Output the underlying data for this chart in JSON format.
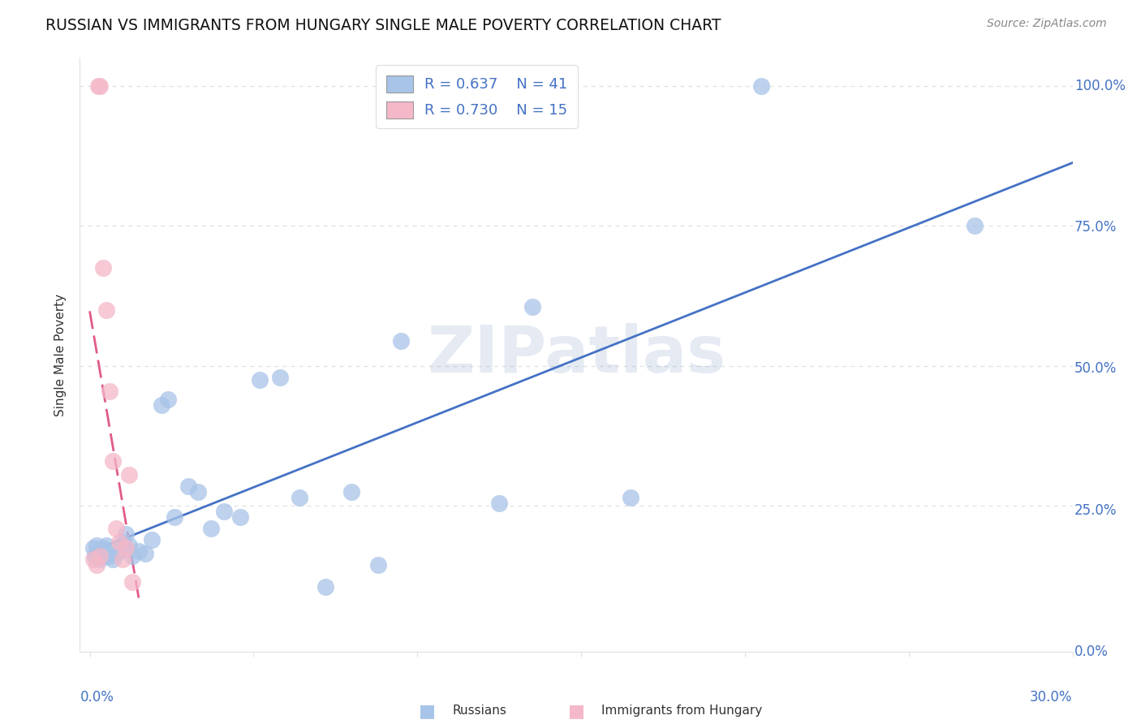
{
  "title": "RUSSIAN VS IMMIGRANTS FROM HUNGARY SINGLE MALE POVERTY CORRELATION CHART",
  "source": "Source: ZipAtlas.com",
  "ylabel": "Single Male Poverty",
  "blue_scatter_color": "#a8c4e8",
  "pink_scatter_color": "#f4b8c8",
  "blue_line_color": "#4472c4",
  "pink_line_color": "#e05a8a",
  "axis_color": "#4472c4",
  "grid_color": "#e0e0e0",
  "watermark": "ZIPatlas",
  "legend_r1": "R = 0.637",
  "legend_n1": "N = 41",
  "legend_r2": "R = 0.730",
  "legend_n2": "N = 15",
  "russians_x": [
    0.001,
    0.0015,
    0.002,
    0.002,
    0.003,
    0.003,
    0.004,
    0.004,
    0.005,
    0.005,
    0.006,
    0.007,
    0.008,
    0.009,
    0.01,
    0.011,
    0.012,
    0.013,
    0.015,
    0.017,
    0.019,
    0.022,
    0.024,
    0.026,
    0.03,
    0.033,
    0.037,
    0.041,
    0.046,
    0.052,
    0.058,
    0.064,
    0.072,
    0.08,
    0.088,
    0.095,
    0.125,
    0.135,
    0.165,
    0.205,
    0.27
  ],
  "russians_y": [
    0.175,
    0.16,
    0.165,
    0.18,
    0.155,
    0.17,
    0.16,
    0.175,
    0.17,
    0.18,
    0.16,
    0.155,
    0.165,
    0.17,
    0.185,
    0.2,
    0.18,
    0.16,
    0.17,
    0.165,
    0.19,
    0.43,
    0.44,
    0.23,
    0.285,
    0.275,
    0.21,
    0.24,
    0.23,
    0.475,
    0.48,
    0.265,
    0.105,
    0.275,
    0.145,
    0.545,
    0.255,
    0.605,
    0.265,
    1.0,
    0.75
  ],
  "hungary_x": [
    0.001,
    0.002,
    0.0025,
    0.003,
    0.003,
    0.004,
    0.005,
    0.006,
    0.007,
    0.008,
    0.009,
    0.01,
    0.011,
    0.012,
    0.013
  ],
  "hungary_y": [
    0.155,
    0.145,
    1.0,
    1.0,
    0.16,
    0.675,
    0.6,
    0.455,
    0.33,
    0.21,
    0.185,
    0.155,
    0.175,
    0.305,
    0.115
  ],
  "xmin": 0.0,
  "xmax": 0.3,
  "ymin": 0.0,
  "ymax": 1.05
}
